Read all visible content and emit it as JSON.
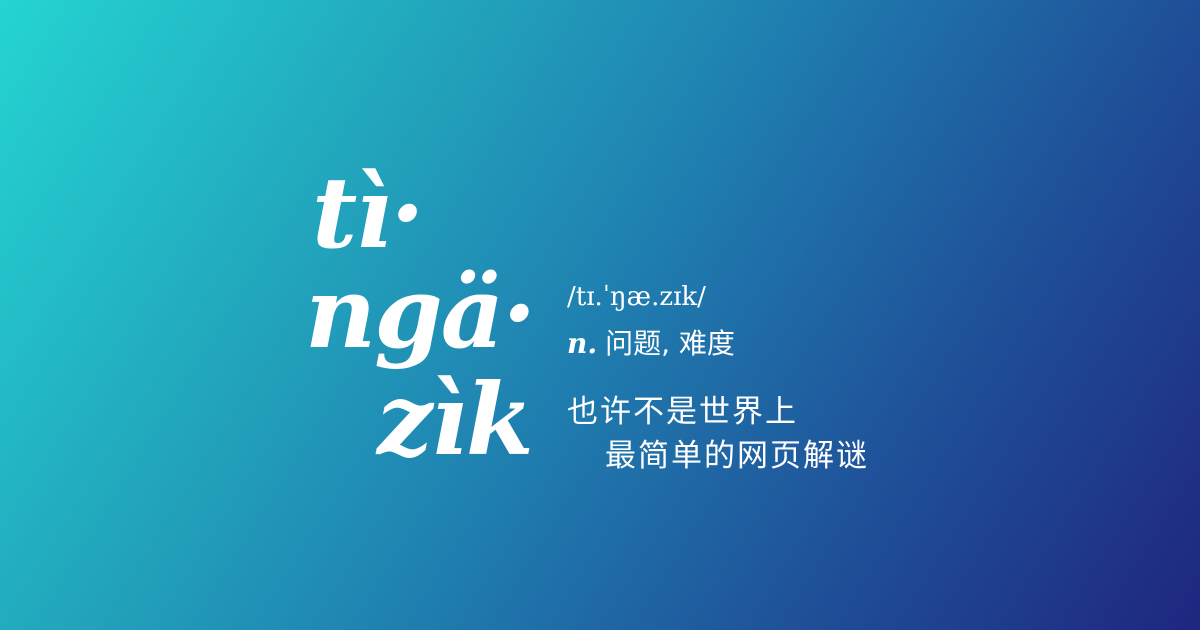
{
  "logo": {
    "line1": "tì·",
    "line2": "ngä·",
    "line3": "zìk"
  },
  "pronunciation": "/tɪ.ˈŋæ.zɪk/",
  "definition": {
    "part_of_speech": "n.",
    "meaning": "问题, 难度"
  },
  "tagline": {
    "line1": "也许不是世界上",
    "line2": "最简单的网页解谜"
  },
  "colors": {
    "gradient_start": "#24d4d2",
    "gradient_end": "#1f2680",
    "text": "#ffffff"
  }
}
